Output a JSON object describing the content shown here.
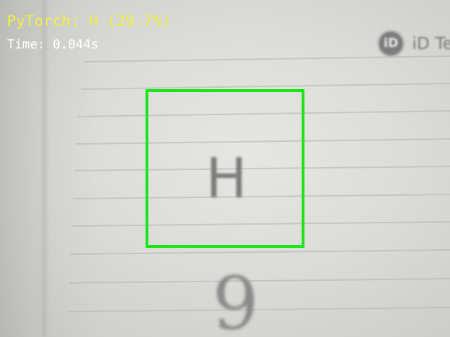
{
  "overlay": {
    "prediction": "PyTorch: H (29.7%)",
    "time": "Time: 0.044s"
  },
  "scene": {
    "logo_mark": "iD",
    "logo_text": "iD Te",
    "handwritten_letter": "H",
    "handwritten_digit": "9"
  },
  "colors": {
    "roi_box": "#19e619",
    "prediction_text": "#f0f040",
    "time_text": "#ffffff"
  }
}
